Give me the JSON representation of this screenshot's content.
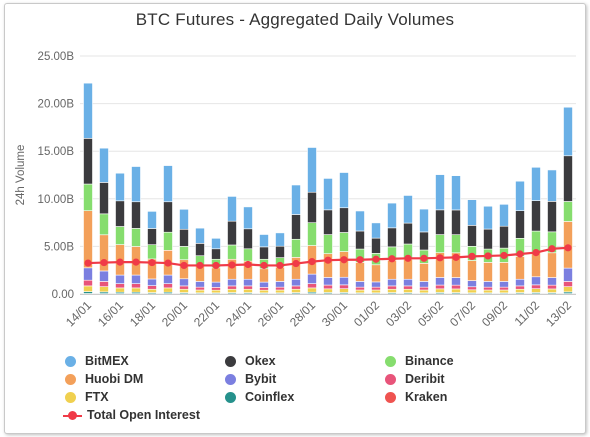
{
  "chart_data": {
    "type": "bar",
    "title": "BTC Futures - Aggregated Daily Volumes",
    "ylabel": "24h Volume",
    "ylim": [
      0,
      25000000000
    ],
    "yticks": [
      0,
      5000000000,
      10000000000,
      15000000000,
      20000000000,
      25000000000
    ],
    "ytick_labels": [
      "0.00",
      "5.00B",
      "10.00B",
      "15.00B",
      "20.00B",
      "25.00B"
    ],
    "xtick_labels": [
      "14/01",
      "16/01",
      "18/01",
      "20/01",
      "22/01",
      "24/01",
      "26/01",
      "28/01",
      "30/01",
      "01/02",
      "03/02",
      "05/02",
      "07/02",
      "09/02",
      "11/02",
      "13/02"
    ],
    "stacked": true,
    "grid": "horizontal",
    "legend_position": "bottom",
    "categories": [
      "14/01",
      "15/01",
      "16/01",
      "17/01",
      "18/01",
      "19/01",
      "20/01",
      "21/01",
      "22/01",
      "23/01",
      "24/01",
      "25/01",
      "26/01",
      "27/01",
      "28/01",
      "29/01",
      "30/01",
      "31/01",
      "01/02",
      "02/02",
      "03/02",
      "04/02",
      "05/02",
      "06/02",
      "07/02",
      "08/02",
      "09/02",
      "10/02",
      "11/02",
      "12/02",
      "13/02"
    ],
    "series": [
      {
        "name": "Kraken",
        "color": "#ef5350",
        "values": [
          0.05,
          0.04,
          0.04,
          0.04,
          0.03,
          0.04,
          0.03,
          0.02,
          0.02,
          0.03,
          0.03,
          0.02,
          0.02,
          0.03,
          0.04,
          0.03,
          0.03,
          0.02,
          0.02,
          0.03,
          0.03,
          0.02,
          0.03,
          0.03,
          0.02,
          0.02,
          0.02,
          0.03,
          0.03,
          0.03,
          0.04
        ]
      },
      {
        "name": "Coinflex",
        "color": "#26918c",
        "values": [
          0.2,
          0.18,
          0.15,
          0.15,
          0.12,
          0.15,
          0.12,
          0.1,
          0.1,
          0.12,
          0.12,
          0.1,
          0.1,
          0.12,
          0.15,
          0.13,
          0.13,
          0.1,
          0.1,
          0.12,
          0.12,
          0.1,
          0.13,
          0.12,
          0.1,
          0.1,
          0.1,
          0.12,
          0.13,
          0.12,
          0.18
        ]
      },
      {
        "name": "FTX",
        "color": "#f0d04f",
        "values": [
          0.6,
          0.55,
          0.45,
          0.45,
          0.35,
          0.45,
          0.35,
          0.3,
          0.28,
          0.35,
          0.35,
          0.28,
          0.3,
          0.35,
          0.45,
          0.38,
          0.4,
          0.3,
          0.3,
          0.35,
          0.35,
          0.3,
          0.38,
          0.38,
          0.32,
          0.3,
          0.3,
          0.35,
          0.4,
          0.38,
          0.55
        ]
      },
      {
        "name": "Deribit",
        "color": "#e8547a",
        "values": [
          0.6,
          0.55,
          0.45,
          0.45,
          0.38,
          0.45,
          0.35,
          0.3,
          0.3,
          0.35,
          0.35,
          0.3,
          0.3,
          0.35,
          0.45,
          0.4,
          0.4,
          0.3,
          0.3,
          0.35,
          0.35,
          0.3,
          0.4,
          0.4,
          0.32,
          0.3,
          0.3,
          0.35,
          0.4,
          0.4,
          0.55
        ]
      },
      {
        "name": "Bybit",
        "color": "#7b7fe0",
        "values": [
          1.3,
          1.1,
          0.9,
          0.9,
          0.7,
          0.9,
          0.75,
          0.6,
          0.55,
          0.7,
          0.7,
          0.55,
          0.6,
          0.7,
          1.0,
          0.8,
          0.8,
          0.6,
          0.55,
          0.7,
          0.7,
          0.6,
          0.8,
          0.8,
          0.65,
          0.6,
          0.6,
          0.7,
          0.85,
          0.8,
          1.4
        ]
      },
      {
        "name": "Huobi DM",
        "color": "#f3a05a",
        "values": [
          6.0,
          3.8,
          3.2,
          3.0,
          2.1,
          2.6,
          2.0,
          1.6,
          1.5,
          2.1,
          1.9,
          1.4,
          1.5,
          2.3,
          3.0,
          2.5,
          2.7,
          2.0,
          1.8,
          2.0,
          2.1,
          1.9,
          2.6,
          2.6,
          2.1,
          2.0,
          2.0,
          2.4,
          2.6,
          2.6,
          4.9
        ]
      },
      {
        "name": "Binance",
        "color": "#86dd6e",
        "values": [
          2.8,
          2.2,
          1.9,
          1.9,
          1.5,
          1.9,
          1.4,
          1.1,
          0.9,
          1.5,
          1.3,
          1.0,
          1.0,
          1.9,
          2.4,
          2.0,
          2.0,
          1.4,
          1.2,
          1.4,
          1.6,
          1.4,
          1.9,
          1.9,
          1.5,
          1.4,
          1.5,
          1.9,
          2.2,
          2.2,
          2.1
        ]
      },
      {
        "name": "Okex",
        "color": "#3b3b3e",
        "values": [
          4.8,
          3.3,
          2.7,
          2.8,
          1.7,
          3.2,
          1.8,
          1.3,
          1.1,
          2.5,
          2.1,
          1.3,
          1.2,
          2.6,
          3.2,
          2.6,
          2.6,
          1.9,
          1.6,
          2.0,
          2.2,
          1.9,
          2.6,
          2.6,
          2.2,
          2.1,
          2.3,
          2.9,
          3.2,
          3.2,
          4.8
        ]
      },
      {
        "name": "BitMEX",
        "color": "#6ab0e6",
        "values": [
          5.8,
          3.6,
          2.9,
          3.7,
          1.8,
          3.8,
          2.1,
          1.6,
          1.1,
          2.6,
          2.3,
          1.3,
          1.4,
          3.1,
          4.7,
          3.3,
          3.7,
          2.1,
          1.6,
          2.6,
          2.9,
          2.4,
          3.7,
          3.6,
          2.7,
          2.4,
          2.3,
          3.1,
          3.5,
          3.3,
          5.1
        ]
      }
    ],
    "series_units": "billions",
    "line_series": {
      "name": "Total Open Interest",
      "color": "#f03a47",
      "values": [
        3.25,
        3.3,
        3.35,
        3.35,
        3.3,
        3.25,
        3.0,
        3.0,
        3.0,
        3.05,
        3.1,
        3.0,
        3.0,
        3.2,
        3.4,
        3.55,
        3.6,
        3.6,
        3.65,
        3.7,
        3.75,
        3.75,
        3.8,
        3.85,
        3.95,
        4.0,
        4.05,
        4.2,
        4.35,
        4.75,
        4.85
      ]
    }
  },
  "legend": [
    {
      "label": "BitMEX",
      "color": "#6ab0e6",
      "kind": "dot"
    },
    {
      "label": "Okex",
      "color": "#3b3b3e",
      "kind": "dot"
    },
    {
      "label": "Binance",
      "color": "#86dd6e",
      "kind": "dot"
    },
    {
      "label": "Huobi DM",
      "color": "#f3a05a",
      "kind": "dot"
    },
    {
      "label": "Bybit",
      "color": "#7b7fe0",
      "kind": "dot"
    },
    {
      "label": "Deribit",
      "color": "#e8547a",
      "kind": "dot"
    },
    {
      "label": "FTX",
      "color": "#f0d04f",
      "kind": "dot"
    },
    {
      "label": "Coinflex",
      "color": "#26918c",
      "kind": "dot"
    },
    {
      "label": "Kraken",
      "color": "#ef5350",
      "kind": "dot"
    },
    {
      "label": "Total Open Interest",
      "color": "#f03a47",
      "kind": "line"
    }
  ]
}
